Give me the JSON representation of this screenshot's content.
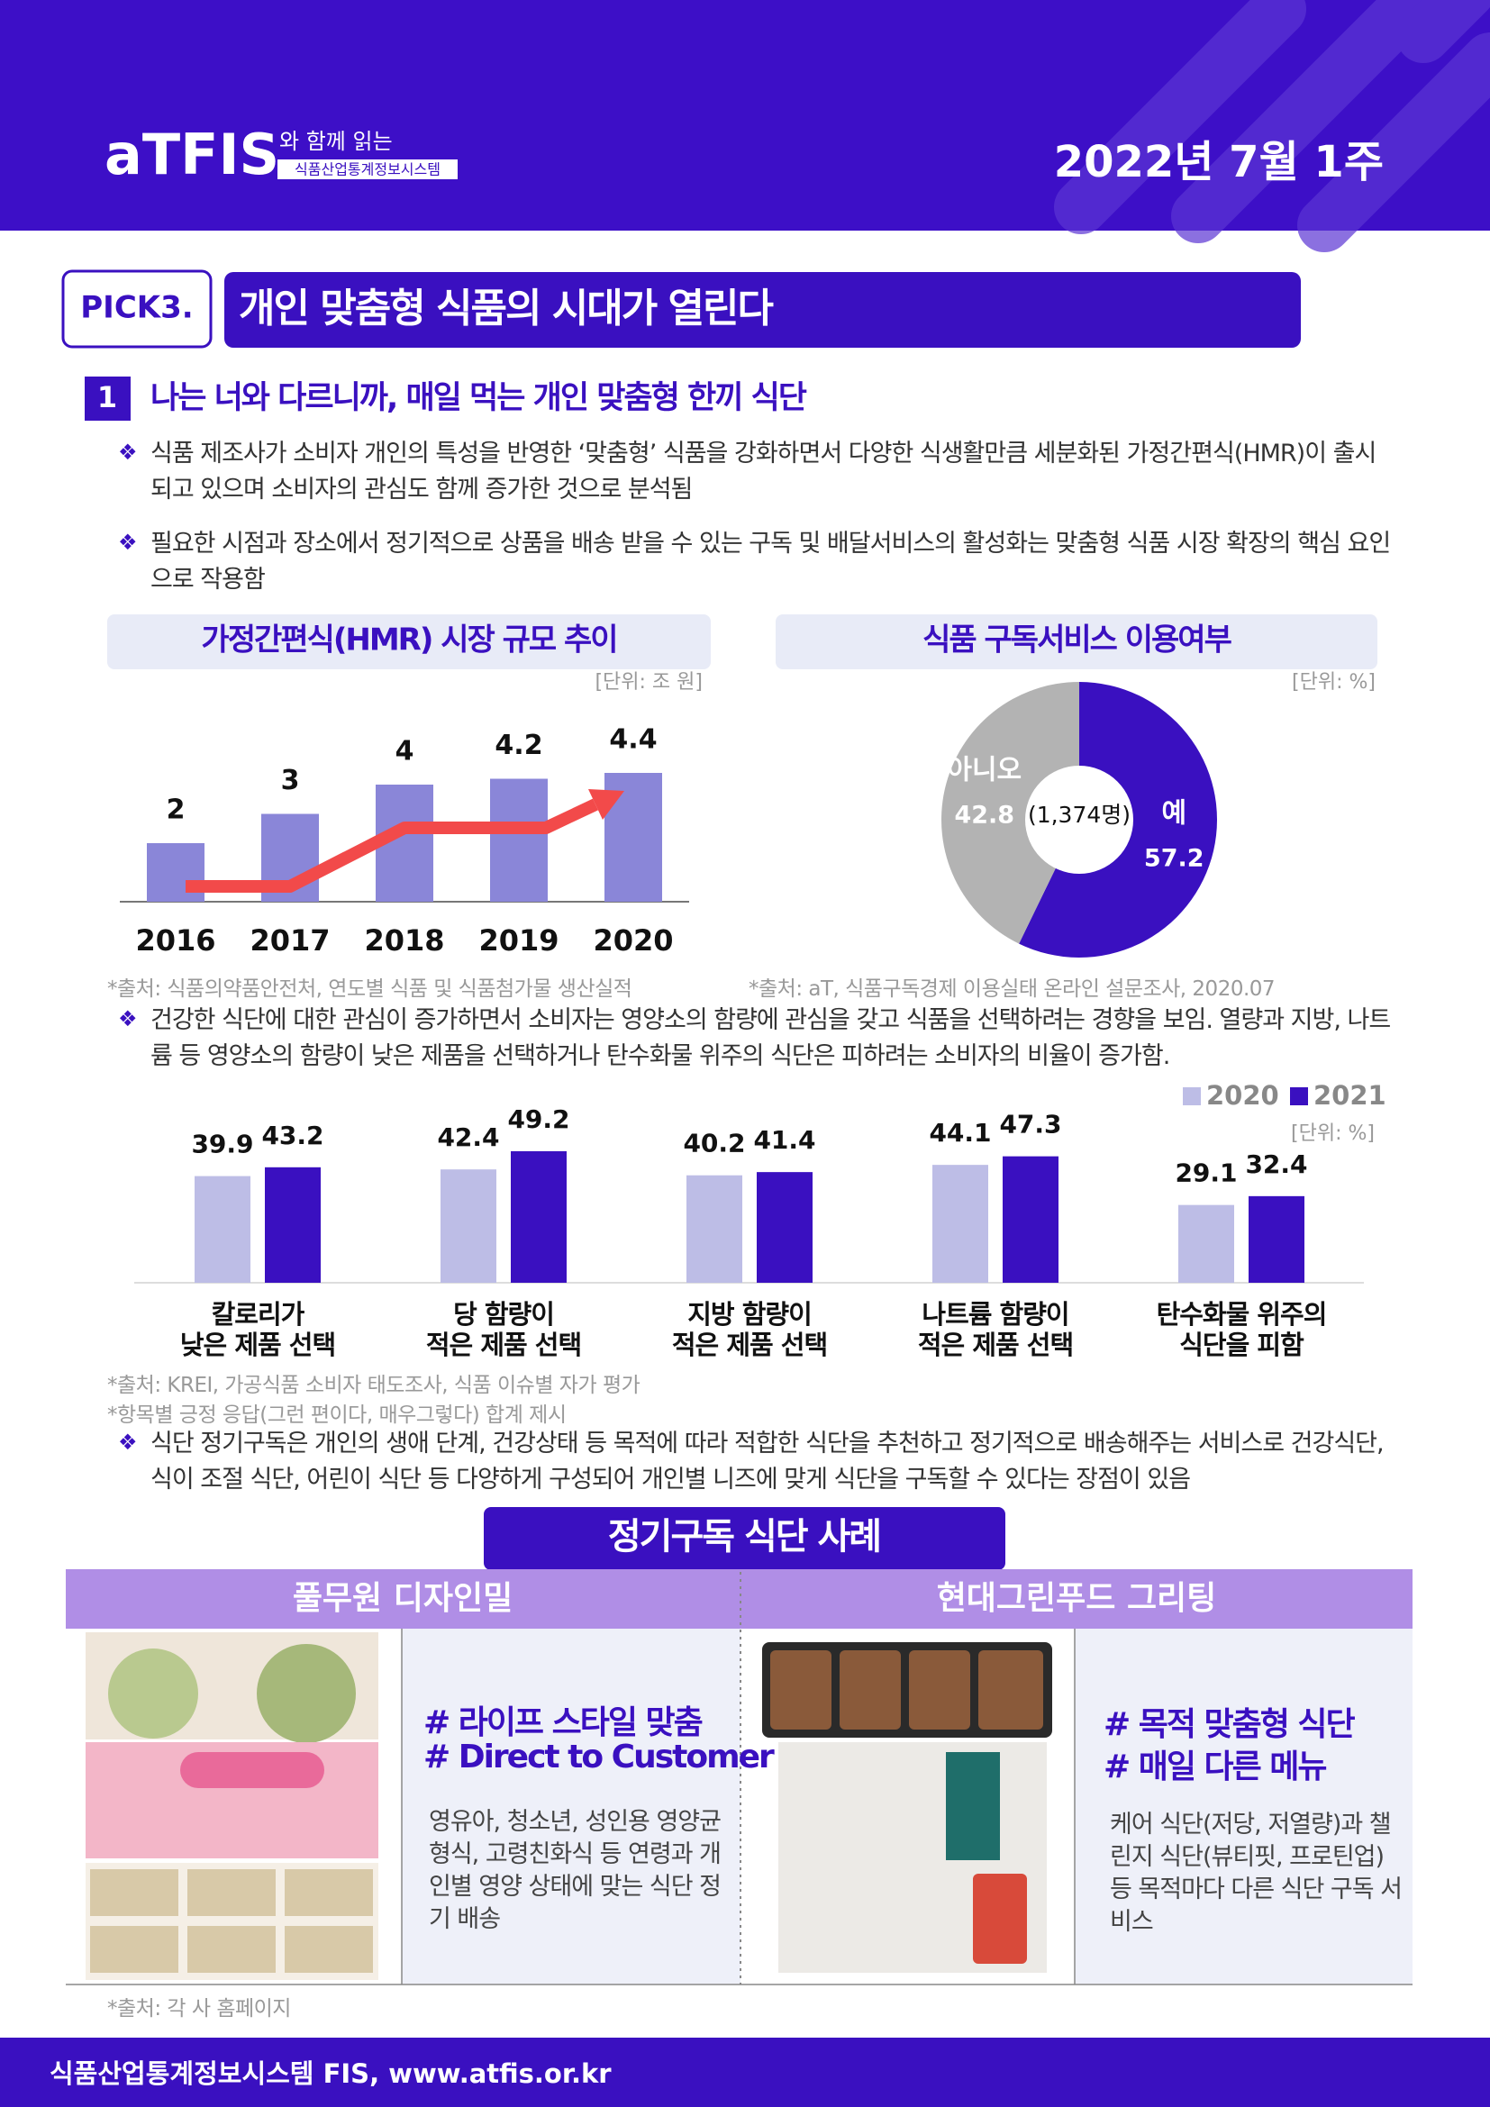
{
  "header": {
    "logo": "aTFIS",
    "logo_tagline": "와 함께 읽는",
    "logo_subtitle": "식품산업통계정보시스템",
    "date": "2022년 7월 1주"
  },
  "pick": {
    "label": "PICK3.",
    "title": "개인 맞춤형 식품의 시대가 열린다"
  },
  "section": {
    "number": 1,
    "title": "나는 너와 다르니까, 매일 먹는 개인 맞춤형 한끼 식단"
  },
  "bullets": [
    "식품 제조사가 소비자 개인의 특성을 반영한 ‘맞춤형’ 식품을 강화하면서 다양한 식생활만큼 세분화된 가정간편식(HMR)이 출시되고 있으며 소비자의 관심도 함께 증가한 것으로 분석됨",
    "필요한 시점과 장소에서 정기적으로 상품을 배송 받을 수 있는 구독 및 배달서비스의 활성화는 맞춤형 식품 시장 확장의 핵심 요인으로 작용함",
    "건강한 식단에 대한 관심이 증가하면서 소비자는 영양소의 함량에 관심을 갖고 식품을 선택하려는 경향을 보임. 열량과 지방, 나트륨 등 영양소의 함량이 낮은 제품을 선택하거나 탄수화물 위주의 식단은 피하려는 소비자의 비율이 증가함.",
    "식단 정기구독은 개인의 생애 단계, 건강상태 등 목적에 따라 적합한 식단을 추천하고 정기적으로 배송해주는 서비스로 건강식단, 식이 조절 식단, 어린이 식단 등 다양하게 구성되어 개인별 니즈에 맞게 식단을 구독할 수 있다는 장점이 있음"
  ],
  "chart_data": [
    {
      "type": "bar",
      "title": "가정간편식(HMR) 시장 규모 추이",
      "unit": "[단위: 조 원]",
      "categories": [
        "2016",
        "2017",
        "2018",
        "2019",
        "2020"
      ],
      "values": [
        2,
        3,
        4,
        4.2,
        4.4
      ],
      "color": "#8a86d8",
      "trend_color": "#f24a4a",
      "source": "*출처: 식품의약품안전처, 연도별 식품 및 식품첨가물 생산실적"
    },
    {
      "type": "pie",
      "title": "식품 구독서비스 이용여부",
      "unit": "[단위: %]",
      "categories": [
        "예",
        "아니오"
      ],
      "values": [
        57.2,
        42.8
      ],
      "colors": [
        "#3a10c0",
        "#b3b3b3"
      ],
      "center_label": "(1,374명)",
      "source": "*출처: aT, 식품구독경제 이용실태 온라인 설문조사, 2020.07"
    },
    {
      "type": "grouped-bar",
      "unit": "[단위: %]",
      "categories": [
        "칼로리가\n낮은 제품 선택",
        "당 함량이\n적은 제품 선택",
        "지방 함량이\n적은 제품 선택",
        "나트륨 함량이\n적은 제품 선택",
        "탄수화물 위주의\n식단을 피함"
      ],
      "series": [
        {
          "name": "2020",
          "color": "#bdbde6",
          "values": [
            39.9,
            42.4,
            40.2,
            44.1,
            29.1
          ]
        },
        {
          "name": "2021",
          "color": "#3a10c0",
          "values": [
            43.2,
            49.2,
            41.4,
            47.3,
            32.4
          ]
        }
      ],
      "sources": [
        "*출처: KREI, 가공식품 소비자 태도조사, 식품 이슈별 자가 평가",
        "*항목별 긍정 응답(그런 편이다, 매우그렇다) 합계 제시"
      ]
    }
  ],
  "cases": {
    "title": "정기구독 식단 사례",
    "items": [
      {
        "name": "풀무원 디자인밀",
        "tags": [
          "# 라이프 스타일 맞춤",
          "# Direct to Customer"
        ],
        "description": "영유아, 청소년, 성인용 영양균형식, 고령친화식 등 연령과 개인별 영양 상태에 맞는 식단 정기 배송"
      },
      {
        "name": "현대그린푸드 그리팅",
        "tags": [
          "# 목적 맞춤형 식단",
          "# 매일 다른 메뉴"
        ],
        "description": "케어 식단(저당, 저열량)과 챌린지 식단(뷰티핏, 프로틴업) 등 목적마다 다른 식단 구독 서비스"
      }
    ],
    "source": "*출처: 각 사 홈페이지"
  },
  "footer": {
    "text": "식품산업통계정보시스템 FIS, www.atfis.or.kr"
  }
}
